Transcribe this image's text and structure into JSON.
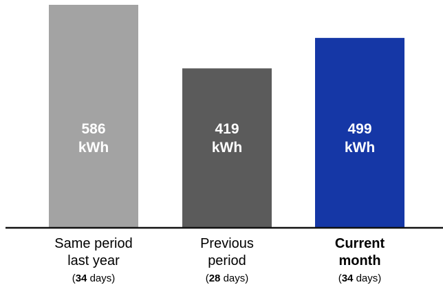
{
  "chart_data": {
    "type": "bar",
    "categories": [
      {
        "label_lines": [
          "Same period",
          "last year"
        ],
        "days": "34",
        "days_suffix": " days",
        "emphasized": false,
        "color": "#a3a3a3"
      },
      {
        "label_lines": [
          "Previous",
          "period"
        ],
        "days": "28",
        "days_suffix": " days",
        "emphasized": false,
        "color": "#5b5b5b"
      },
      {
        "label_lines": [
          "Current",
          "month"
        ],
        "days": "34",
        "days_suffix": " days",
        "emphasized": true,
        "color": "#1537a6"
      }
    ],
    "values": [
      586,
      419,
      499
    ],
    "value_labels": [
      [
        "586",
        "kWh"
      ],
      [
        "419",
        "kWh"
      ],
      [
        "499",
        "kWh"
      ]
    ],
    "title": "",
    "xlabel": "",
    "ylabel": "",
    "ylim": [
      0,
      586
    ],
    "grid": false
  }
}
